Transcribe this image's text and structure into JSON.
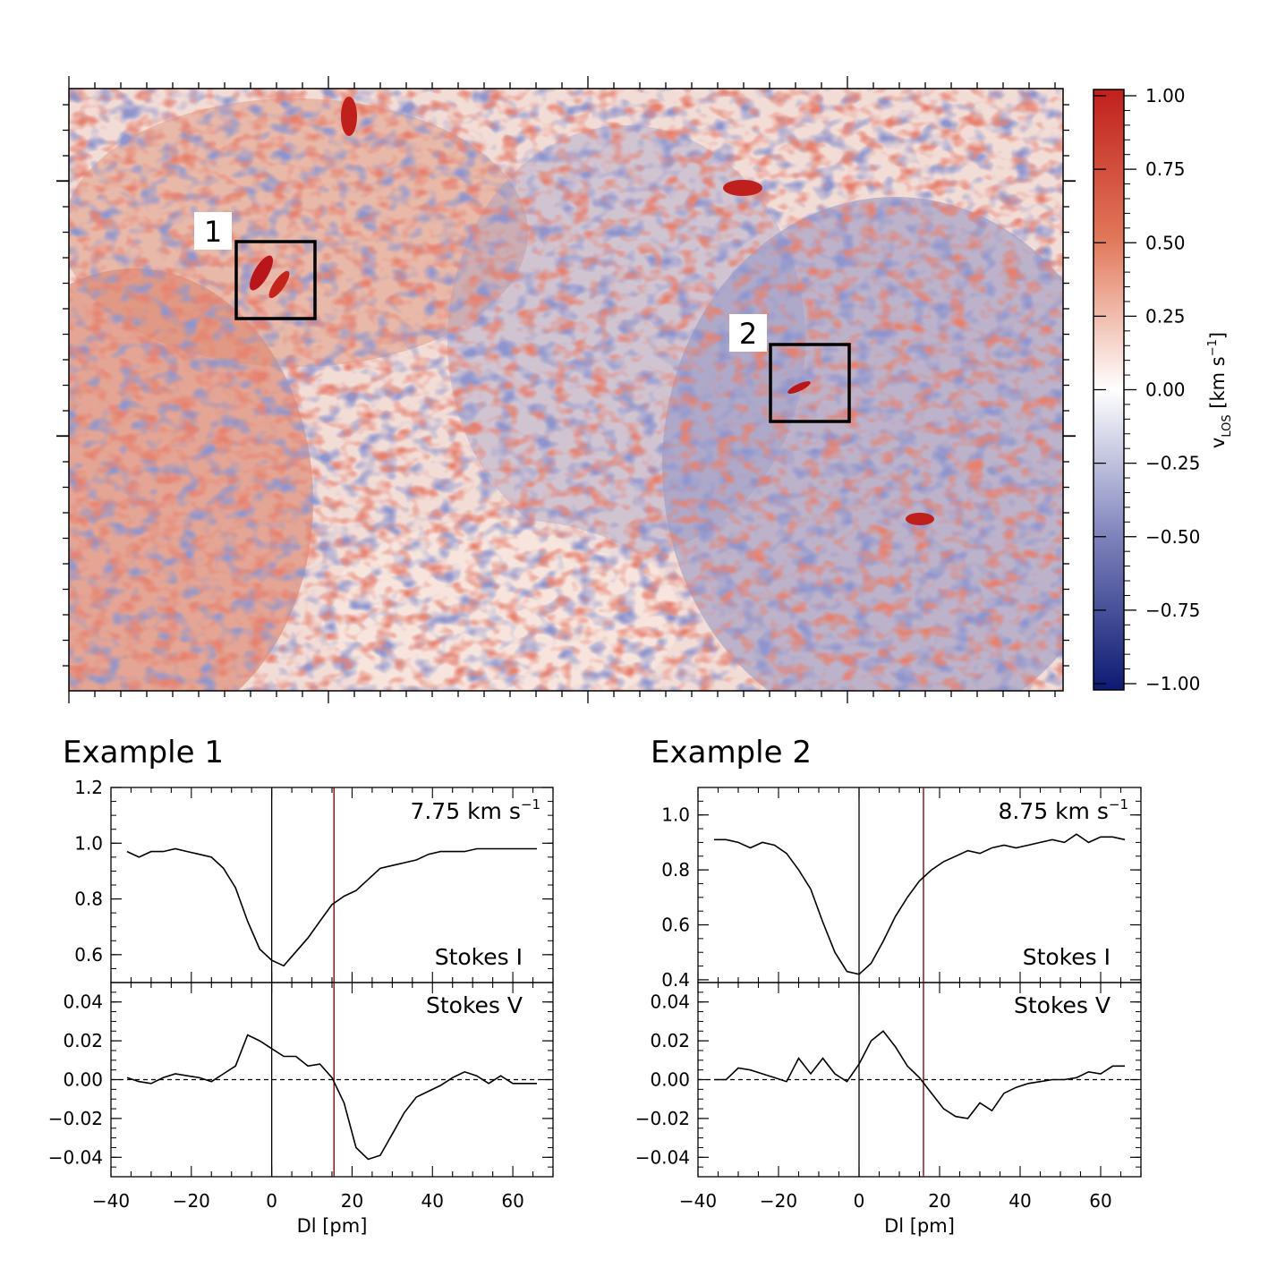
{
  "map": {
    "colorbar": {
      "label": "v",
      "label_sub": "LOS",
      "label_unit": "[km s",
      "label_exp": "−1",
      "label_close": "]",
      "range": [
        -1.0,
        1.0
      ],
      "ticks": [
        "1.00",
        "0.75",
        "0.50",
        "0.25",
        "0.00",
        "−0.25",
        "−0.50",
        "−0.75",
        "−1.00"
      ],
      "colors": {
        "positive": "#c0201c",
        "zero": "#ffffff",
        "negative": "#0c1a72"
      }
    },
    "boxes": [
      {
        "label": "1"
      },
      {
        "label": "2"
      }
    ]
  },
  "chart_data": [
    {
      "type": "line",
      "title": "Example 1",
      "velocity_label": "7.75 km s",
      "velocity_exp": "−1",
      "xlabel": "Dl [pm]",
      "xlim": [
        -40,
        70
      ],
      "xticks": [
        "−40",
        "−20",
        "0",
        "20",
        "40",
        "60"
      ],
      "reference_lines": {
        "black_x": 0,
        "red_x": 15.5
      },
      "stokes_i": {
        "label": "Stokes I",
        "ylim": [
          0.5,
          1.2
        ],
        "yticks": [
          "0.6",
          "0.8",
          "1.0",
          "1.2"
        ],
        "x": [
          -36,
          -33,
          -30,
          -27,
          -24,
          -21,
          -18,
          -15,
          -12,
          -9,
          -6,
          -3,
          0,
          3,
          6,
          9,
          12,
          15,
          18,
          21,
          24,
          27,
          30,
          33,
          36,
          39,
          42,
          45,
          48,
          51,
          54,
          57,
          60,
          63,
          66
        ],
        "y": [
          0.97,
          0.95,
          0.97,
          0.97,
          0.98,
          0.97,
          0.96,
          0.95,
          0.91,
          0.84,
          0.72,
          0.62,
          0.58,
          0.56,
          0.61,
          0.66,
          0.72,
          0.78,
          0.81,
          0.83,
          0.87,
          0.91,
          0.92,
          0.93,
          0.94,
          0.96,
          0.97,
          0.97,
          0.97,
          0.98,
          0.98,
          0.98,
          0.98,
          0.98,
          0.98
        ]
      },
      "stokes_v": {
        "label": "Stokes V",
        "ylim": [
          -0.05,
          0.05
        ],
        "yticks": [
          "0.04",
          "0.02",
          "0.00",
          "−0.02",
          "−0.04"
        ],
        "x": [
          -36,
          -33,
          -30,
          -27,
          -24,
          -21,
          -18,
          -15,
          -12,
          -9,
          -6,
          -3,
          0,
          3,
          6,
          9,
          12,
          15,
          18,
          21,
          24,
          27,
          30,
          33,
          36,
          39,
          42,
          45,
          48,
          51,
          54,
          57,
          60,
          63,
          66
        ],
        "y": [
          0.001,
          -0.001,
          -0.002,
          0.001,
          0.003,
          0.002,
          0.001,
          -0.001,
          0.003,
          0.007,
          0.023,
          0.02,
          0.016,
          0.012,
          0.012,
          0.007,
          0.008,
          0.001,
          -0.012,
          -0.035,
          -0.041,
          -0.039,
          -0.028,
          -0.017,
          -0.009,
          -0.006,
          -0.003,
          0.001,
          0.004,
          0.002,
          -0.002,
          0.002,
          -0.002,
          -0.002,
          -0.002
        ]
      }
    },
    {
      "type": "line",
      "title": "Example 2",
      "velocity_label": "8.75 km s",
      "velocity_exp": "−1",
      "xlabel": "Dl [pm]",
      "xlim": [
        -40,
        70
      ],
      "xticks": [
        "−40",
        "−20",
        "0",
        "20",
        "40",
        "60"
      ],
      "reference_lines": {
        "black_x": 0,
        "red_x": 16
      },
      "stokes_i": {
        "label": "Stokes I",
        "ylim": [
          0.39,
          1.1
        ],
        "yticks": [
          "0.4",
          "0.6",
          "0.8",
          "1.0"
        ],
        "x": [
          -36,
          -33,
          -30,
          -27,
          -24,
          -21,
          -18,
          -15,
          -12,
          -9,
          -6,
          -3,
          0,
          3,
          6,
          9,
          12,
          15,
          18,
          21,
          24,
          27,
          30,
          33,
          36,
          39,
          42,
          45,
          48,
          51,
          54,
          57,
          60,
          63,
          66
        ],
        "y": [
          0.91,
          0.91,
          0.9,
          0.88,
          0.9,
          0.89,
          0.86,
          0.8,
          0.73,
          0.61,
          0.5,
          0.43,
          0.42,
          0.46,
          0.54,
          0.63,
          0.7,
          0.76,
          0.8,
          0.83,
          0.85,
          0.87,
          0.86,
          0.88,
          0.89,
          0.88,
          0.89,
          0.9,
          0.91,
          0.9,
          0.93,
          0.9,
          0.92,
          0.92,
          0.91
        ]
      },
      "stokes_v": {
        "label": "Stokes V",
        "ylim": [
          -0.05,
          0.05
        ],
        "yticks": [
          "0.04",
          "0.02",
          "0.00",
          "−0.02",
          "−0.04"
        ],
        "x": [
          -36,
          -33,
          -30,
          -27,
          -24,
          -21,
          -18,
          -15,
          -12,
          -9,
          -6,
          -3,
          0,
          3,
          6,
          9,
          12,
          15,
          18,
          21,
          24,
          27,
          30,
          33,
          36,
          39,
          42,
          45,
          48,
          51,
          54,
          57,
          60,
          63,
          66
        ],
        "y": [
          0.0,
          0.0,
          0.006,
          0.005,
          0.003,
          0.001,
          -0.001,
          0.011,
          0.003,
          0.011,
          0.003,
          -0.001,
          0.008,
          0.02,
          0.025,
          0.017,
          0.007,
          0.001,
          -0.007,
          -0.015,
          -0.019,
          -0.02,
          -0.012,
          -0.016,
          -0.007,
          -0.004,
          -0.002,
          -0.001,
          0.0,
          0.0,
          0.001,
          0.004,
          0.003,
          0.007,
          0.007
        ]
      }
    }
  ]
}
